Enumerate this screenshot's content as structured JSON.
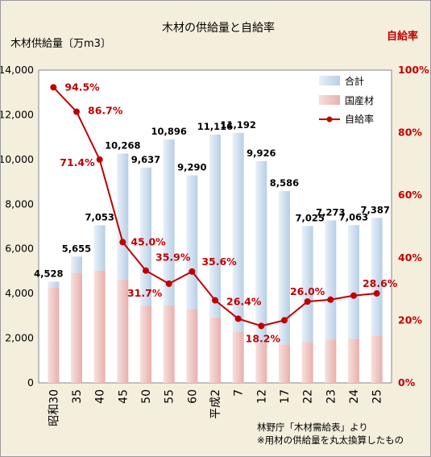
{
  "chart_data": {
    "type": "bar",
    "title": "木材の供給量と自給率",
    "ylabel_left": "木材供給量〔万m3〕",
    "ylabel_right": "自給率",
    "categories": [
      "昭和30",
      "35",
      "40",
      "45",
      "50",
      "55",
      "60",
      "平成2",
      "7",
      "12",
      "17",
      "22",
      "23",
      "24",
      "25"
    ],
    "series": [
      {
        "name": "合計",
        "type": "bar",
        "color": "#b8cfe6",
        "values": [
          4528,
          5655,
          7053,
          10268,
          9637,
          10896,
          9290,
          11116,
          11192,
          9926,
          8586,
          7025,
          7273,
          7063,
          7387
        ]
      },
      {
        "name": "国産材",
        "type": "bar",
        "color": "#e8b0ac",
        "values": [
          4270,
          4930,
          5020,
          4600,
          3460,
          3470,
          3300,
          2930,
          2290,
          1800,
          1720,
          1820,
          1930,
          1970,
          2110
        ]
      },
      {
        "name": "自給率",
        "type": "line",
        "axis": "right",
        "color": "#c00000",
        "values": [
          94.5,
          86.7,
          71.4,
          45.0,
          35.9,
          31.7,
          35.6,
          26.4,
          20.5,
          18.2,
          20.0,
          26.0,
          26.6,
          27.9,
          28.6
        ]
      }
    ],
    "value_labels": [
      "4,528",
      "5,655",
      "7,053",
      "10,268",
      "9,637",
      "10,896",
      "9,290",
      "11,116",
      "11,192",
      "9,926",
      "8,586",
      "7,025",
      "7,273",
      "7,063",
      "7,387"
    ],
    "rate_labels": [
      {
        "index": 0,
        "text": "94.5%"
      },
      {
        "index": 1,
        "text": "86.7%"
      },
      {
        "index": 2,
        "text": "71.4%"
      },
      {
        "index": 3,
        "text": "45.0%"
      },
      {
        "index": 4,
        "text": "35.9%"
      },
      {
        "index": 5,
        "text": "31.7%"
      },
      {
        "index": 6,
        "text": "35.6%"
      },
      {
        "index": 7,
        "text": "26.4%"
      },
      {
        "index": 9,
        "text": "18.2%"
      },
      {
        "index": 11,
        "text": "26.0%"
      },
      {
        "index": 14,
        "text": "28.6%"
      }
    ],
    "left_ticks": [
      "0",
      "2,000",
      "4,000",
      "6,000",
      "8,000",
      "10,000",
      "12,000",
      "14,000"
    ],
    "right_ticks": [
      "0%",
      "20%",
      "40%",
      "60%",
      "80%",
      "100%"
    ],
    "ylim_left": [
      0,
      14000
    ],
    "ylim_right": [
      0,
      100
    ],
    "legend_position": "top-right",
    "grid": false
  },
  "note": {
    "line1": "林野庁「木材需給表」より",
    "line2": "※用材の供給量を丸太換算したもの"
  }
}
